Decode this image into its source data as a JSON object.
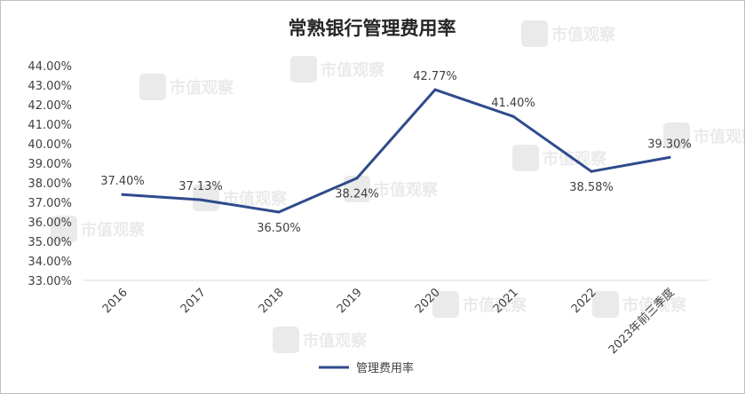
{
  "chart_data": {
    "type": "line",
    "title": "常熟银行管理费用率",
    "categories": [
      "2016",
      "2017",
      "2018",
      "2019",
      "2020",
      "2021",
      "2022",
      "2023年前三季度"
    ],
    "series": [
      {
        "name": "管理费用率",
        "values": [
          37.4,
          37.13,
          36.5,
          38.24,
          42.77,
          41.4,
          38.58,
          39.3
        ],
        "labels": [
          "37.40%",
          "37.13%",
          "36.50%",
          "38.24%",
          "42.77%",
          "41.40%",
          "38.58%",
          "39.30%"
        ],
        "color": "#2f4b8c"
      }
    ],
    "yticks": [
      "33.00%",
      "34.00%",
      "35.00%",
      "36.00%",
      "37.00%",
      "38.00%",
      "39.00%",
      "40.00%",
      "41.00%",
      "42.00%",
      "43.00%",
      "44.00%"
    ],
    "ylim": [
      33,
      44
    ],
    "grid": false,
    "legend": "bottom-center"
  },
  "watermark": {
    "text": "市值观察",
    "color": "#d9d9d9"
  }
}
